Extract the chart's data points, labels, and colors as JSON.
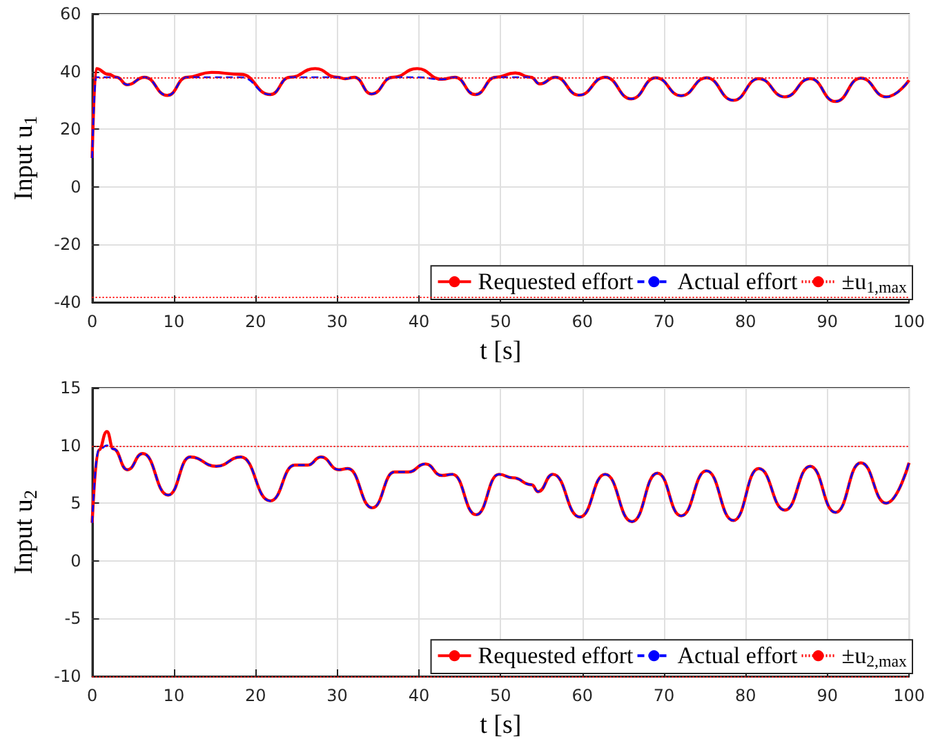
{
  "chart_data": [
    {
      "type": "line",
      "xlabel": "t [s]",
      "ylabel": "Input u$_{1}$",
      "xlim": [
        0,
        100
      ],
      "xticks": [
        0,
        10,
        20,
        30,
        40,
        50,
        60,
        70,
        80,
        90,
        100
      ],
      "ylim": [
        -40,
        60
      ],
      "yticks": [
        -40,
        -20,
        0,
        20,
        40,
        60
      ],
      "grid": true,
      "legend": "bottom right",
      "marker": "none",
      "x": [
        0,
        0.5,
        2,
        3,
        4.3,
        6.4,
        9.2,
        11.6,
        14.6,
        18.2,
        21.8,
        24.2,
        27.3,
        30,
        31,
        32.1,
        34.2,
        36.8,
        39.8,
        42.8,
        44.4,
        46.9,
        49.4,
        51.8,
        53.7,
        54.8,
        56.7,
        59.6,
        62.8,
        66,
        69,
        72.1,
        75.2,
        78.5,
        81.6,
        84.8,
        87.9,
        91,
        94.1,
        97.2,
        100
      ],
      "series": [
        {
          "name": "Requested effort",
          "color": "#ff0000",
          "line_style": "solid",
          "values": [
            10,
            41,
            39,
            38,
            35.4,
            38,
            31.7,
            38,
            39.7,
            39,
            32,
            38,
            41,
            38,
            37.5,
            38,
            32.2,
            38,
            41,
            37.3,
            38,
            32,
            38,
            39.5,
            38,
            35.7,
            38,
            31.8,
            38,
            30.5,
            37.8,
            31.6,
            37.8,
            30,
            37.5,
            31.2,
            37.5,
            29.6,
            37.7,
            31.2,
            37
          ]
        },
        {
          "name": "Actual effort",
          "color": "#0000ff",
          "line_style": "dashed",
          "values": [
            10,
            38,
            38,
            38,
            35.4,
            38,
            31.7,
            38,
            38,
            38,
            32,
            38,
            38,
            38,
            37.5,
            38,
            32.2,
            38,
            38,
            37.3,
            38,
            32,
            38,
            38,
            38,
            35.7,
            38,
            31.8,
            38,
            30.5,
            37.8,
            31.6,
            37.8,
            30,
            37.5,
            31.2,
            37.5,
            29.6,
            37.7,
            31.2,
            37
          ]
        }
      ],
      "ref_lines": [
        {
          "axis": "y",
          "value": 38,
          "label": "±u$_{1,max}$",
          "color": "#ff0000",
          "line_style": "dotted"
        },
        {
          "axis": "y",
          "value": -38,
          "color": "#ff0000",
          "line_style": "dotted"
        }
      ]
    },
    {
      "type": "line",
      "xlabel": "t [s]",
      "ylabel": "Input u$_{2}$",
      "xlim": [
        0,
        100
      ],
      "xticks": [
        0,
        10,
        20,
        30,
        40,
        50,
        60,
        70,
        80,
        90,
        100
      ],
      "ylim": [
        -10,
        15
      ],
      "yticks": [
        -10,
        -5,
        0,
        5,
        10,
        15
      ],
      "grid": true,
      "legend": "bottom right",
      "marker": "none",
      "x": [
        0,
        0.8,
        1.8,
        2.6,
        4.3,
        6.2,
        9.3,
        12,
        15.2,
        18.2,
        21.8,
        24.8,
        26.4,
        28,
        30.2,
        31.3,
        34.3,
        37,
        38.7,
        40.8,
        42.8,
        44.1,
        47,
        49.8,
        51.5,
        53.8,
        54.6,
        56.4,
        59.7,
        62.8,
        66.1,
        69.2,
        72.1,
        75.2,
        78.5,
        81.6,
        84.8,
        87.9,
        91,
        94.1,
        97.2,
        100
      ],
      "series": [
        {
          "name": "Requested effort",
          "color": "#ff0000",
          "line_style": "solid",
          "values": [
            3.3,
            9.6,
            11.2,
            9.7,
            7.9,
            9.3,
            5.7,
            9.0,
            8.2,
            9.0,
            5.2,
            8.3,
            8.3,
            9.0,
            7.9,
            8.0,
            4.6,
            7.7,
            7.7,
            8.4,
            7.4,
            7.5,
            4.0,
            7.5,
            7.2,
            6.6,
            6.0,
            7.5,
            3.8,
            7.5,
            3.4,
            7.6,
            3.9,
            7.8,
            3.5,
            8.0,
            4.4,
            8.2,
            4.2,
            8.5,
            5.0,
            8.5
          ]
        },
        {
          "name": "Actual effort",
          "color": "#0000ff",
          "line_style": "dashed",
          "values": [
            3.3,
            9.6,
            10,
            9.7,
            7.9,
            9.3,
            5.7,
            9.0,
            8.2,
            9.0,
            5.2,
            8.3,
            8.3,
            9.0,
            7.9,
            8.0,
            4.6,
            7.7,
            7.7,
            8.4,
            7.4,
            7.5,
            4.0,
            7.5,
            7.2,
            6.6,
            6.0,
            7.5,
            3.8,
            7.5,
            3.4,
            7.6,
            3.9,
            7.8,
            3.5,
            8.0,
            4.4,
            8.2,
            4.2,
            8.5,
            5.0,
            8.5
          ]
        }
      ],
      "ref_lines": [
        {
          "axis": "y",
          "value": 10,
          "label": "±u$_{2,max}$",
          "color": "#ff0000",
          "line_style": "dotted"
        },
        {
          "axis": "y",
          "value": -10,
          "color": "#ff0000",
          "line_style": "dotted"
        }
      ]
    }
  ]
}
